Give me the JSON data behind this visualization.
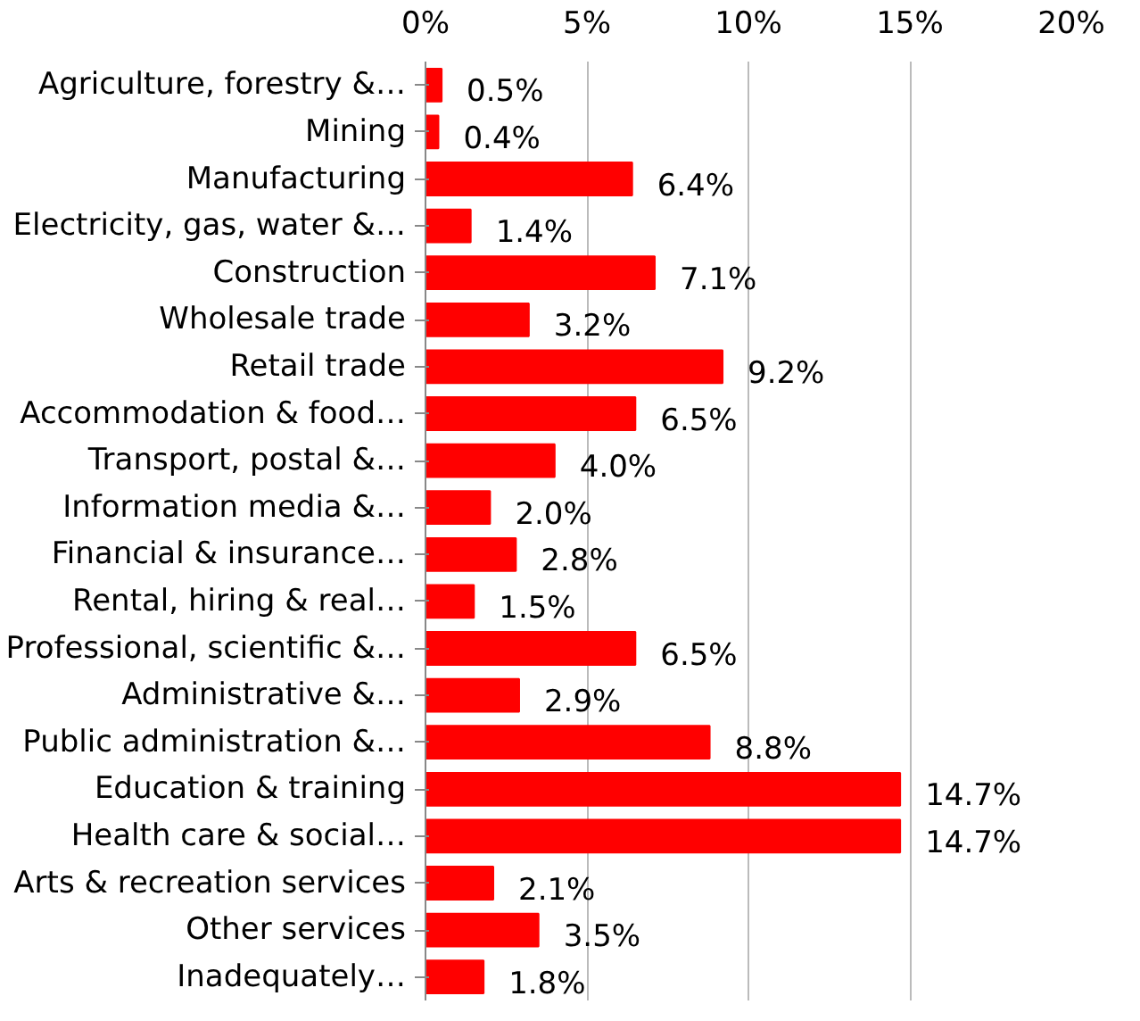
{
  "chart_data": {
    "type": "bar",
    "orientation": "horizontal",
    "categories": [
      "Agriculture, forestry &…",
      "Mining",
      "Manufacturing",
      "Electricity, gas, water &…",
      "Construction",
      "Wholesale trade",
      "Retail trade",
      "Accommodation & food…",
      "Transport, postal &…",
      "Information media &…",
      "Financial & insurance…",
      "Rental, hiring & real…",
      "Professional, scientific &…",
      "Administrative &…",
      "Public administration &…",
      "Education & training",
      "Health care & social…",
      "Arts & recreation services",
      "Other services",
      "Inadequately…"
    ],
    "values": [
      0.5,
      0.4,
      6.4,
      1.4,
      7.1,
      3.2,
      9.2,
      6.5,
      4.0,
      2.0,
      2.8,
      1.5,
      6.5,
      2.9,
      8.8,
      14.7,
      14.7,
      2.1,
      3.5,
      1.8
    ],
    "value_labels": [
      "0.5%",
      "0.4%",
      "6.4%",
      "1.4%",
      "7.1%",
      "3.2%",
      "9.2%",
      "6.5%",
      "4.0%",
      "2.0%",
      "2.8%",
      "1.5%",
      "6.5%",
      "2.9%",
      "8.8%",
      "14.7%",
      "14.7%",
      "2.1%",
      "3.5%",
      "1.8%"
    ],
    "color": "#ff0000",
    "xlim": [
      0,
      20
    ],
    "xticks": [
      {
        "value": 0,
        "label": "0%"
      },
      {
        "value": 5,
        "label": "5%"
      },
      {
        "value": 10,
        "label": "10%"
      },
      {
        "value": 15,
        "label": "15%"
      },
      {
        "value": 20,
        "label": "20%"
      }
    ],
    "grid": "x"
  }
}
